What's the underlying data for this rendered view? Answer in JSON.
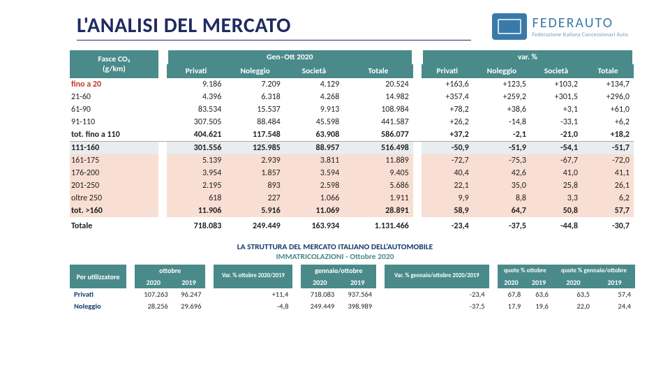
{
  "header": {
    "title": "L'ANALISI DEL MERCATO",
    "logo_main": "FEDERAUTO",
    "logo_sub": "Federazione Italiana Concessionari Auto"
  },
  "table1": {
    "head": {
      "col1_l1": "Fasce CO₂",
      "col1_l2": "(g/km)",
      "group1": "Gen–Ott 2020",
      "group2": "var. %",
      "sub": [
        "Privati",
        "Noleggio",
        "Società",
        "Totale",
        "Privati",
        "Noleggio",
        "Società",
        "Totale"
      ]
    },
    "rows": [
      {
        "cls": "red",
        "label": "fino a 20",
        "v": [
          "9.186",
          "7.209",
          "4.129",
          "20.524",
          "+163,6",
          "+123,5",
          "+103,2",
          "+134,7"
        ]
      },
      {
        "cls": "",
        "label": "21-60",
        "v": [
          "4.396",
          "6.318",
          "4.268",
          "14.982",
          "+357,4",
          "+259,2",
          "+301,5",
          "+296,0"
        ]
      },
      {
        "cls": "",
        "label": "61-90",
        "v": [
          "83.534",
          "15.537",
          "9.913",
          "108.984",
          "+78,2",
          "+38,6",
          "+3,1",
          "+61,0"
        ]
      },
      {
        "cls": "",
        "label": "91-110",
        "v": [
          "307.505",
          "88.484",
          "45.598",
          "441.587",
          "+26,2",
          "-14,8",
          "-33,1",
          "+6,2"
        ]
      },
      {
        "cls": "bold bbot",
        "label": "tot. fino a 110",
        "v": [
          "404.621",
          "117.548",
          "63.908",
          "586.077",
          "+37,2",
          "-2,1",
          "-21,0",
          "+18,2"
        ]
      },
      {
        "cls": "sec111",
        "label": "111-160",
        "v": [
          "301.556",
          "125.985",
          "88.957",
          "516.498",
          "-50,9",
          "-51,9",
          "-54,1",
          "-51,7"
        ]
      },
      {
        "cls": "peach",
        "label": "161-175",
        "v": [
          "5.139",
          "2.939",
          "3.811",
          "11.889",
          "-72,7",
          "-75,3",
          "-67,7",
          "-72,0"
        ]
      },
      {
        "cls": "peach",
        "label": "176-200",
        "v": [
          "3.954",
          "1.857",
          "3.594",
          "9.405",
          "40,4",
          "42,6",
          "41,0",
          "41,1"
        ]
      },
      {
        "cls": "peach",
        "label": "201-250",
        "v": [
          "2.195",
          "893",
          "2.598",
          "5.686",
          "22,1",
          "35,0",
          "25,8",
          "26,1"
        ]
      },
      {
        "cls": "peach",
        "label": "oltre 250",
        "v": [
          "618",
          "227",
          "1.066",
          "1.911",
          "9,9",
          "8,8",
          "3,3",
          "6,2"
        ]
      },
      {
        "cls": "peachbold",
        "label": "tot. >160",
        "v": [
          "11.906",
          "5.916",
          "11.069",
          "28.891",
          "58,9",
          "64,7",
          "50,8",
          "57,7"
        ]
      },
      {
        "cls": "total",
        "label": "Totale",
        "v": [
          "718.083",
          "249.449",
          "163.934",
          "1.131.466",
          "-23,4",
          "-37,5",
          "-44,8",
          "-30,7"
        ]
      }
    ]
  },
  "subtitle": {
    "line1": "LA STRUTTURA DEL MERCATO ITALIANO DELL'AUTOMOBILE",
    "line2": "IMMATRICOLAZIONI - Ottobre 2020"
  },
  "table2": {
    "head": {
      "rowlabel": "Per utilizzatore",
      "g1": "ottobre",
      "g2": "Var. % ottobre 2020/2019",
      "g3": "gennaio/ottobre",
      "g4": "Var. % gennaio/ottobre 2020/2019",
      "g5": "quote % ottobre",
      "g6": "quote % gennaio/ottobre",
      "years": [
        "2020",
        "2019",
        "",
        "2020",
        "2019",
        "",
        "2020",
        "2019",
        "2020",
        "2019"
      ]
    },
    "rows": [
      {
        "label": "Privati",
        "v": [
          "107.263",
          "96.247",
          "+11,4",
          "718.083",
          "937.564",
          "-23,4",
          "67,8",
          "63,6",
          "63,5",
          "57,4"
        ]
      },
      {
        "label": "Noleggio",
        "v": [
          "28.256",
          "29.696",
          "-4,8",
          "249.449",
          "398.989",
          "-37,5",
          "17,9",
          "19,6",
          "22,0",
          "24,4"
        ]
      }
    ]
  },
  "colors": {
    "teal": "#4a8a8a",
    "navy": "#1f2b60",
    "peach": "#f8ded3",
    "grayblue": "#e8edef",
    "redtext": "#c4342d"
  }
}
